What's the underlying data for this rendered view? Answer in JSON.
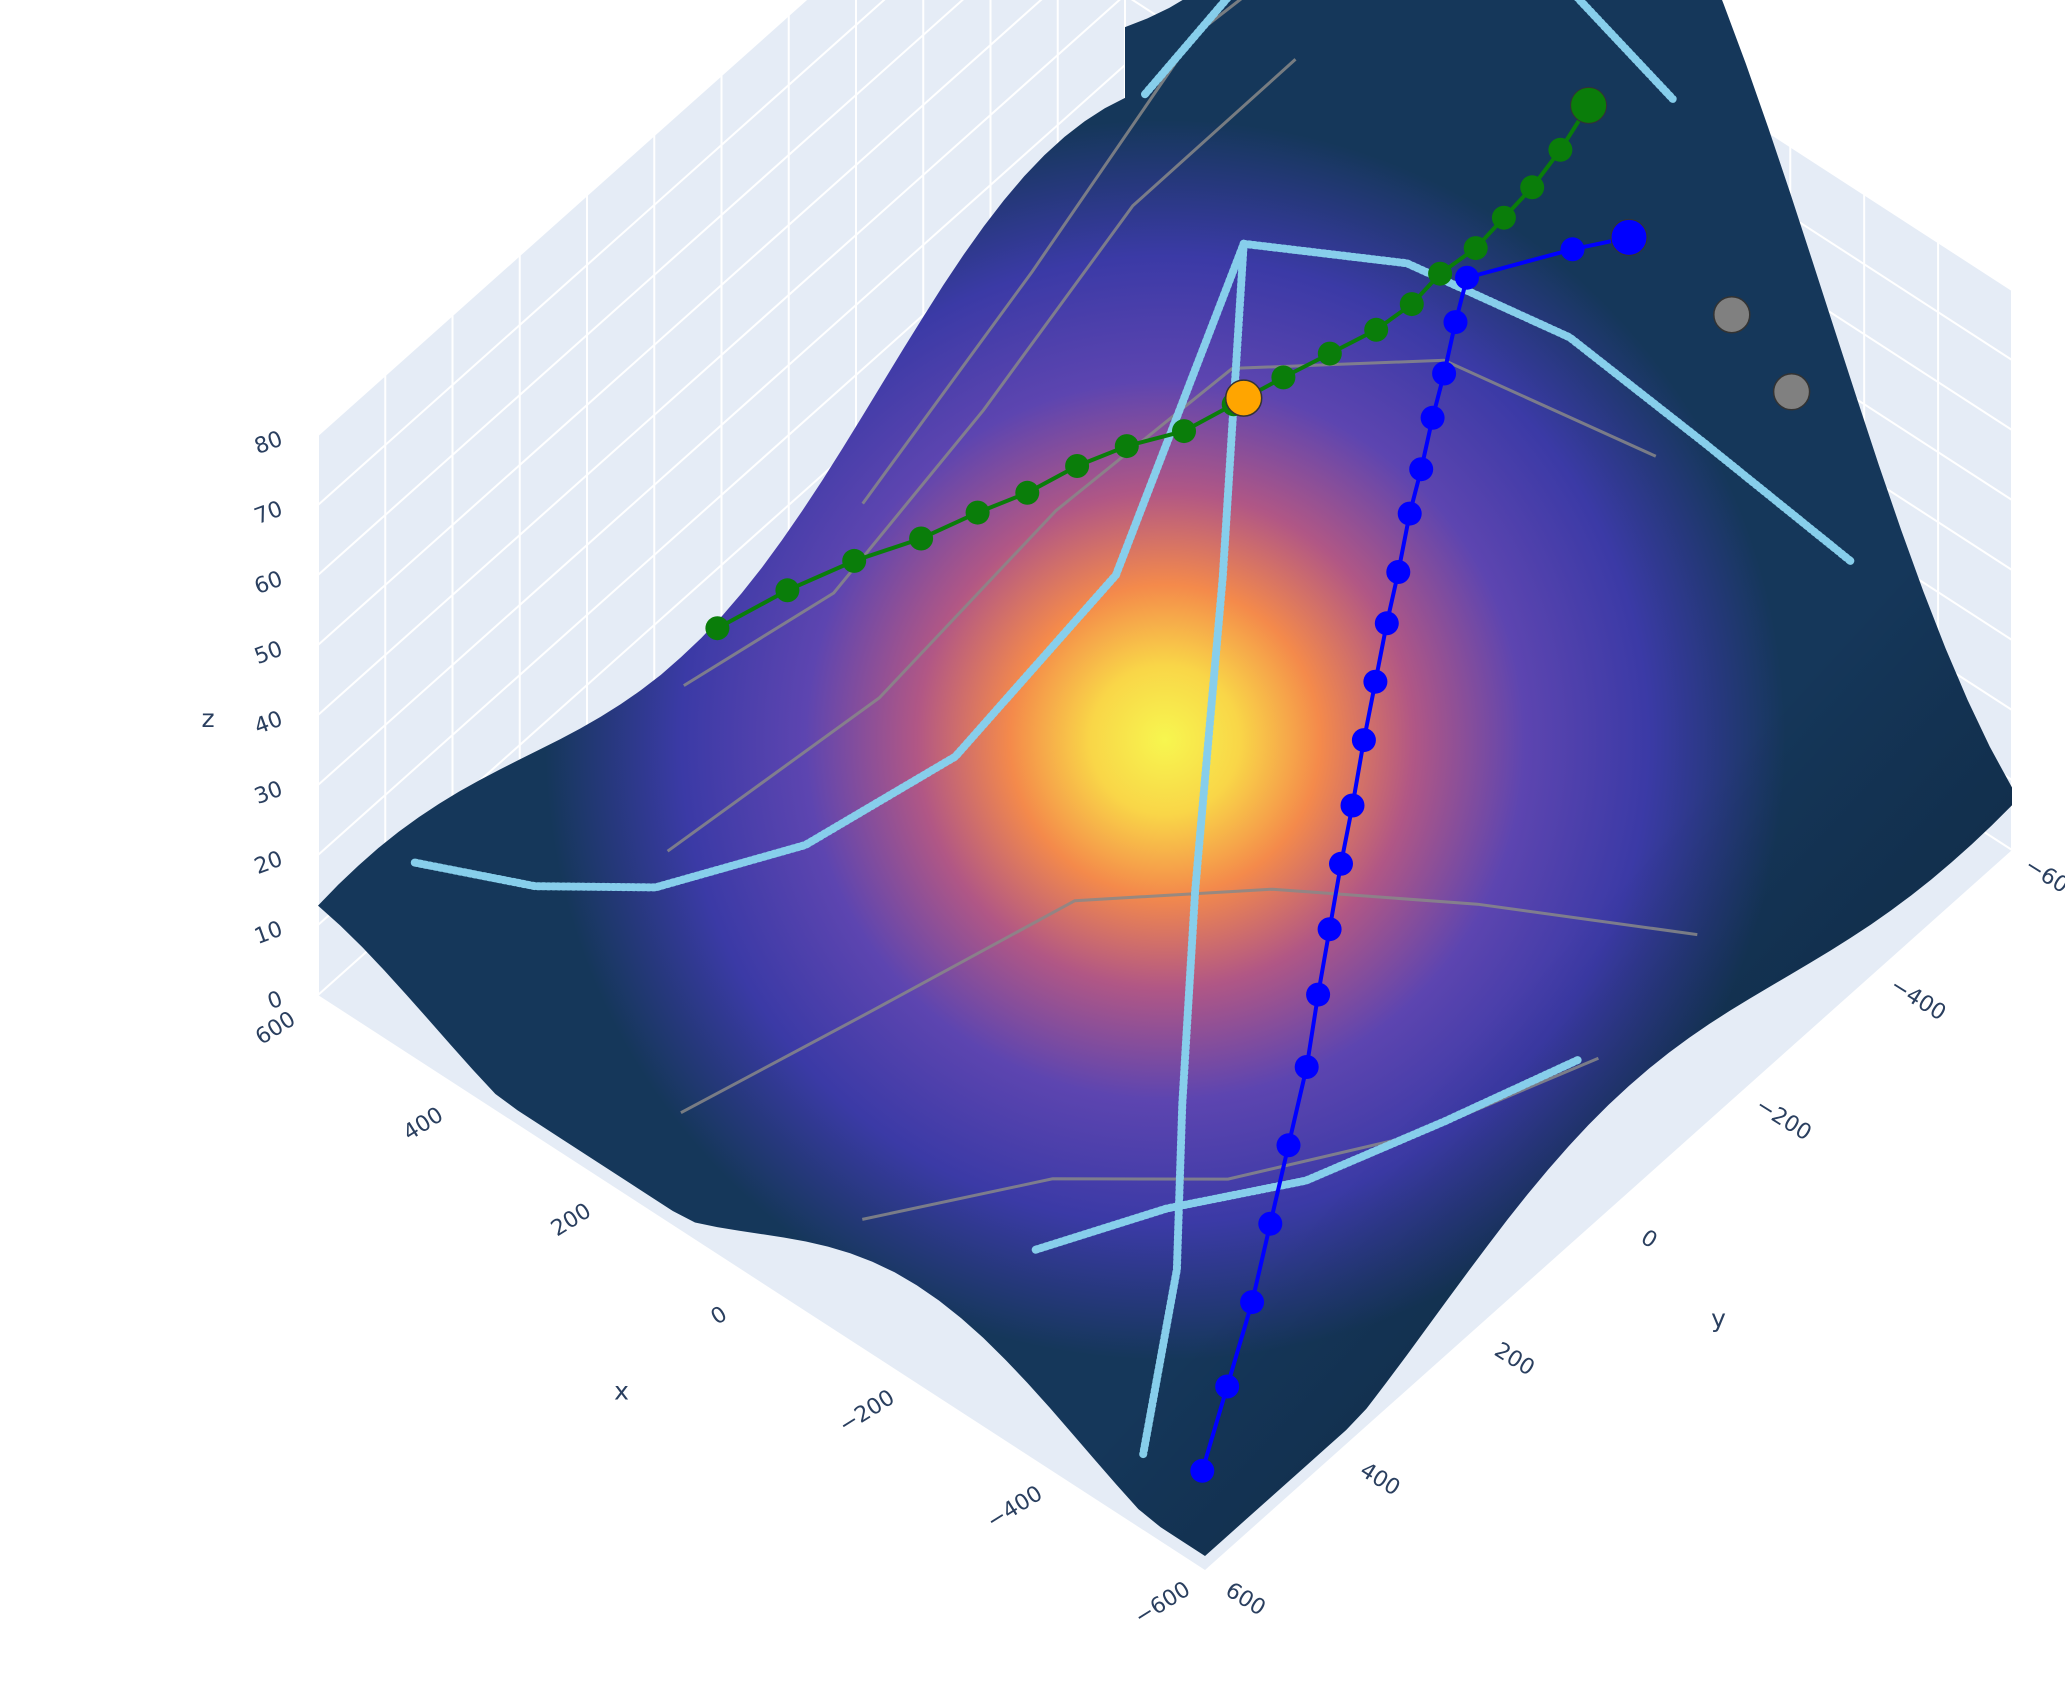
{
  "chart_data": {
    "type": "surface",
    "title": "",
    "axes": {
      "x": {
        "label": "x",
        "range": [
          -600,
          600
        ],
        "ticks": [
          600,
          400,
          200,
          0,
          -200,
          -400,
          -600
        ],
        "tick_labels": [
          "600",
          "400",
          "200",
          "0",
          "−200",
          "−400",
          "−600"
        ]
      },
      "y": {
        "label": "y",
        "range": [
          -600,
          600
        ],
        "ticks": [
          -600,
          -400,
          -200,
          0,
          200,
          400,
          600
        ],
        "tick_labels": [
          "−600",
          "−400",
          "−200",
          "0",
          "200",
          "400",
          "600"
        ]
      },
      "z": {
        "label": "z",
        "range": [
          0,
          80
        ],
        "ticks": [
          0,
          10,
          20,
          30,
          40,
          50,
          60,
          70,
          80
        ],
        "tick_labels": [
          "0",
          "10",
          "20",
          "30",
          "40",
          "50",
          "60",
          "70",
          "80"
        ]
      }
    },
    "grid": true,
    "legend": "none",
    "colors": {
      "scene_background": "#e5ecf6",
      "grid": "#ffffff",
      "surface_low": "#12394f",
      "surface_mid": "#3b3aa6",
      "surface_high": "#f5f34d",
      "contour": "#555555",
      "gray_path": "#888888",
      "light_blue_path": "#87ceeb",
      "green_path": "#0a7d0a",
      "blue_path": "#0000ff",
      "peak_marker": "#ffa500",
      "gray_marker": "#808080"
    },
    "surface": {
      "description_shape": "terrain with a central summit near (x=0, y=-100)",
      "peak": {
        "x": 0,
        "y": -100,
        "z": 58
      },
      "summits": [
        {
          "x": 80,
          "y": -420,
          "z": 72
        },
        {
          "x": 230,
          "y": -480,
          "z": 66
        },
        {
          "x": -200,
          "y": -580,
          "z": 52
        }
      ]
    },
    "series": [
      {
        "kind": "path-markers",
        "color": "green",
        "points": [
          [
            560,
            50,
            8
          ],
          [
            520,
            -10,
            11
          ],
          [
            475,
            -60,
            14
          ],
          [
            430,
            -110,
            16
          ],
          [
            390,
            -150,
            19
          ],
          [
            350,
            -180,
            22
          ],
          [
            310,
            -210,
            26
          ],
          [
            270,
            -240,
            29
          ],
          [
            220,
            -270,
            32
          ],
          [
            180,
            -300,
            36
          ],
          [
            140,
            -330,
            40
          ],
          [
            100,
            -355,
            44
          ],
          [
            60,
            -380,
            48
          ],
          [
            30,
            -400,
            52
          ],
          [
            10,
            -420,
            56
          ],
          [
            -20,
            -440,
            60
          ],
          [
            -40,
            -460,
            64
          ],
          [
            -60,
            -480,
            68
          ],
          [
            -80,
            -500,
            73
          ],
          [
            -100,
            -520,
            79
          ]
        ]
      },
      {
        "kind": "path-markers",
        "color": "blue",
        "points": [
          [
            -560,
            560,
            8
          ],
          [
            -530,
            490,
            12
          ],
          [
            -500,
            420,
            16
          ],
          [
            -470,
            360,
            20
          ],
          [
            -440,
            300,
            24
          ],
          [
            -410,
            240,
            28
          ],
          [
            -380,
            190,
            32
          ],
          [
            -350,
            140,
            35
          ],
          [
            -320,
            90,
            38
          ],
          [
            -290,
            40,
            40
          ],
          [
            -260,
            -10,
            43
          ],
          [
            -230,
            -60,
            45
          ],
          [
            -200,
            -110,
            47
          ],
          [
            -170,
            -160,
            48
          ],
          [
            -140,
            -210,
            50
          ],
          [
            -110,
            -260,
            50
          ],
          [
            -80,
            -310,
            51
          ],
          [
            -50,
            -360,
            51
          ],
          [
            -20,
            -410,
            52
          ],
          [
            10,
            -460,
            52
          ],
          [
            -60,
            -540,
            54
          ],
          [
            -100,
            -580,
            55
          ]
        ]
      },
      {
        "kind": "marker",
        "color": "orange",
        "points": [
          [
            30,
            -150,
            60
          ]
        ]
      },
      {
        "kind": "marker",
        "color": "gray",
        "points": [
          [
            -230,
            -590,
            52
          ],
          [
            -320,
            -580,
            48
          ]
        ]
      }
    ]
  }
}
